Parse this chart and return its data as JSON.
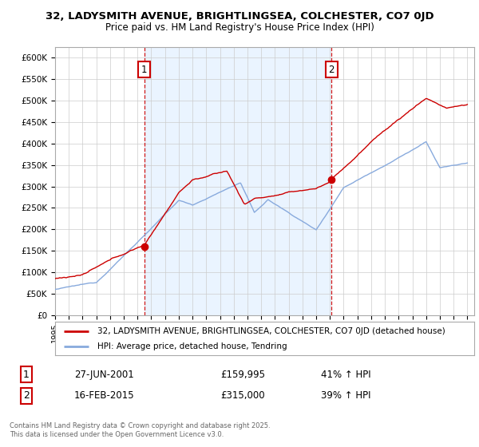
{
  "title": "32, LADYSMITH AVENUE, BRIGHTLINGSEA, COLCHESTER, CO7 0JD",
  "subtitle": "Price paid vs. HM Land Registry's House Price Index (HPI)",
  "ylabel_ticks": [
    "£0",
    "£50K",
    "£100K",
    "£150K",
    "£200K",
    "£250K",
    "£300K",
    "£350K",
    "£400K",
    "£450K",
    "£500K",
    "£550K",
    "£600K"
  ],
  "ylim": [
    0,
    625000
  ],
  "xlim_start": 1995.0,
  "xlim_end": 2025.5,
  "red_line_color": "#cc0000",
  "blue_line_color": "#88aadd",
  "fill_color": "#ddeeff",
  "marker1_x": 2001.49,
  "marker1_y": 159995,
  "marker2_x": 2015.12,
  "marker2_y": 315000,
  "vline1_x": 2001.49,
  "vline2_x": 2015.12,
  "vline_color": "#cc0000",
  "legend1_label": "32, LADYSMITH AVENUE, BRIGHTLINGSEA, COLCHESTER, CO7 0JD (detached house)",
  "legend2_label": "HPI: Average price, detached house, Tendring",
  "annotation1_label": "1",
  "annotation2_label": "2",
  "table_row1": [
    "1",
    "27-JUN-2001",
    "£159,995",
    "41% ↑ HPI"
  ],
  "table_row2": [
    "2",
    "16-FEB-2015",
    "£315,000",
    "39% ↑ HPI"
  ],
  "footer": "Contains HM Land Registry data © Crown copyright and database right 2025.\nThis data is licensed under the Open Government Licence v3.0.",
  "background_color": "#ffffff",
  "grid_color": "#cccccc"
}
